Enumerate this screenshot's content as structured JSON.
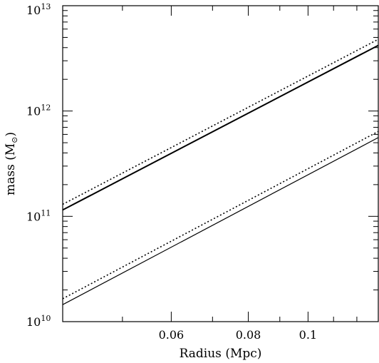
{
  "chart_data": {
    "type": "line",
    "title": "",
    "xlabel": "Radius (Mpc)",
    "ylabel_main": "mass (M",
    "ylabel_sub": "⊙",
    "ylabel_close": ")",
    "xscale": "log",
    "yscale": "log",
    "xlim": [
      0.04,
      0.13
    ],
    "ylim": [
      10000000000.0,
      10000000000000.0
    ],
    "grid": false,
    "legend": "none",
    "x_ticks": [
      {
        "value": 0.06,
        "label": "0.06"
      },
      {
        "value": 0.08,
        "label": "0.08"
      },
      {
        "value": 0.1,
        "label": "0.1"
      }
    ],
    "y_ticks": [
      {
        "value": 10000000000.0,
        "base": "10",
        "exp": "10"
      },
      {
        "value": 100000000000.0,
        "base": "10",
        "exp": "11"
      },
      {
        "value": 1000000000000.0,
        "base": "10",
        "exp": "12"
      },
      {
        "value": 10000000000000.0,
        "base": "10",
        "exp": "13"
      }
    ],
    "series": [
      {
        "style": "solid-thick",
        "x": [
          0.04,
          0.13
        ],
        "y": [
          115000000000.0,
          4200000000000.0
        ]
      },
      {
        "style": "dotted",
        "x": [
          0.04,
          0.13
        ],
        "y": [
          130000000000.0,
          4800000000000.0
        ]
      },
      {
        "style": "solid-thin",
        "x": [
          0.04,
          0.13
        ],
        "y": [
          14500000000.0,
          560000000000.0
        ]
      },
      {
        "style": "dotted",
        "x": [
          0.04,
          0.13
        ],
        "y": [
          16500000000.0,
          640000000000.0
        ]
      }
    ]
  }
}
